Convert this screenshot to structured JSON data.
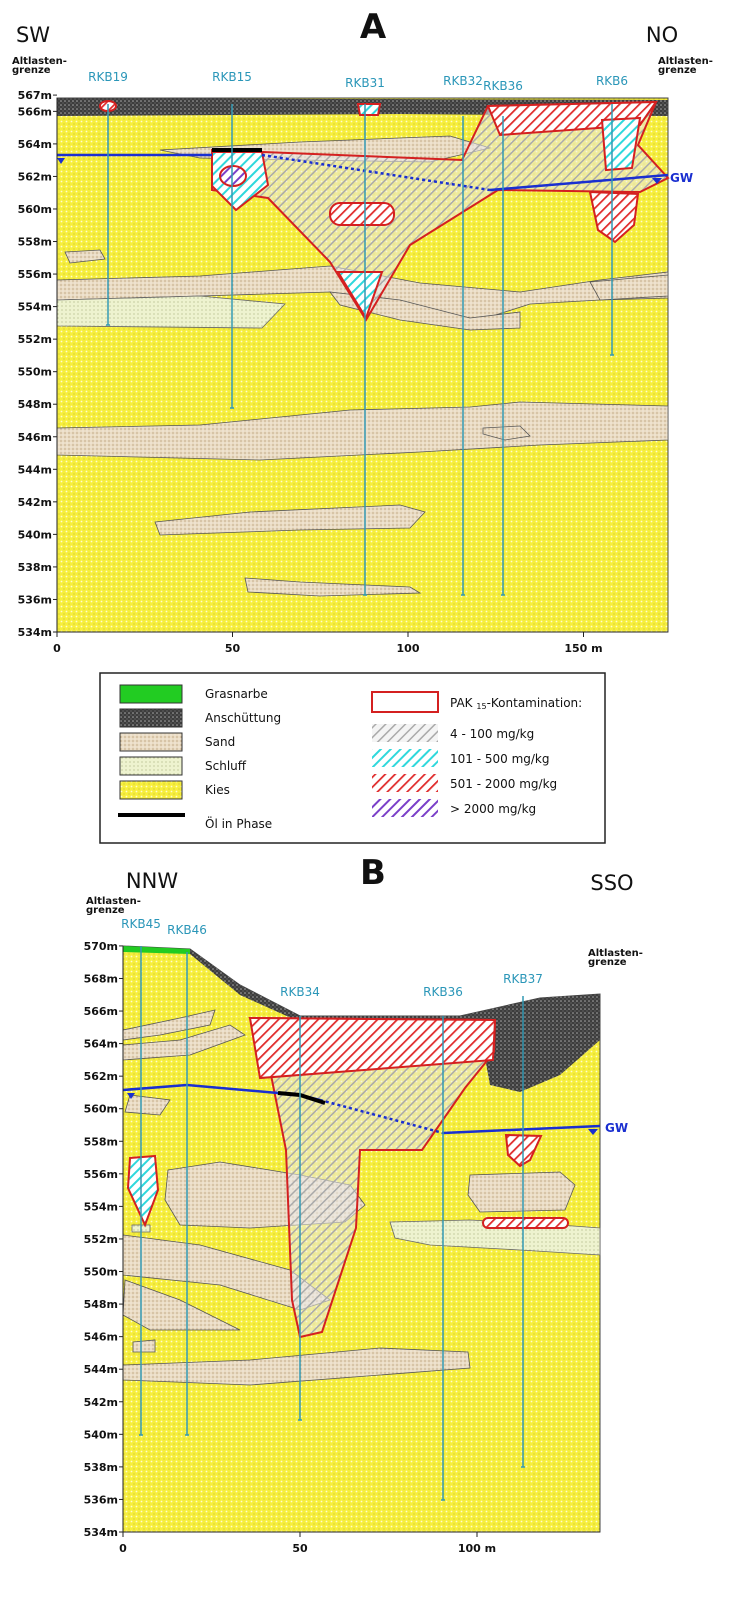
{
  "section_a": {
    "title": "A",
    "left_direction": "SW",
    "right_direction": "NO",
    "boundary_left": [
      "Altlasten-",
      "grenze"
    ],
    "boundary_right": [
      "Altlasten-",
      "grenze"
    ],
    "groundwater": "GW",
    "y_axis": [
      "567m",
      "566m",
      "564m",
      "562m",
      "560m",
      "558m",
      "556m",
      "554m",
      "552m",
      "550m",
      "548m",
      "546m",
      "544m",
      "542m",
      "540m",
      "538m",
      "536m",
      "534m"
    ],
    "x_axis": [
      "0",
      "50",
      "100",
      "150 m"
    ],
    "boreholes": [
      "RKB19",
      "RKB15",
      "RKB31",
      "RKB32",
      "RKB36",
      "RKB6"
    ]
  },
  "legend": {
    "layers": [
      "Grasnarbe",
      "Anschüttung",
      "Sand",
      "Schluff",
      "Kies"
    ],
    "oil": "Öl in Phase",
    "contamination": {
      "prefix": "PAK ",
      "subscript": "15",
      "suffix": "-Kontamination:"
    },
    "classes": [
      "4 - 100 mg/kg",
      "101 - 500 mg/kg",
      "501 - 2000 mg/kg",
      "> 2000 mg/kg"
    ]
  },
  "section_b": {
    "title": "B",
    "left_direction": "NNW",
    "right_direction": "SSO",
    "boundary_left": [
      "Altlasten-",
      "grenze"
    ],
    "boundary_right": [
      "Altlasten-",
      "grenze"
    ],
    "groundwater": "GW",
    "y_axis": [
      "570m",
      "568m",
      "566m",
      "564m",
      "562m",
      "560m",
      "558m",
      "556m",
      "554m",
      "552m",
      "550m",
      "548m",
      "546m",
      "544m",
      "542m",
      "540m",
      "538m",
      "536m",
      "534m"
    ],
    "x_axis": [
      "0",
      "50",
      "100 m"
    ],
    "boreholes": [
      "RKB45",
      "RKB46",
      "RKB34",
      "RKB36",
      "RKB37"
    ]
  }
}
